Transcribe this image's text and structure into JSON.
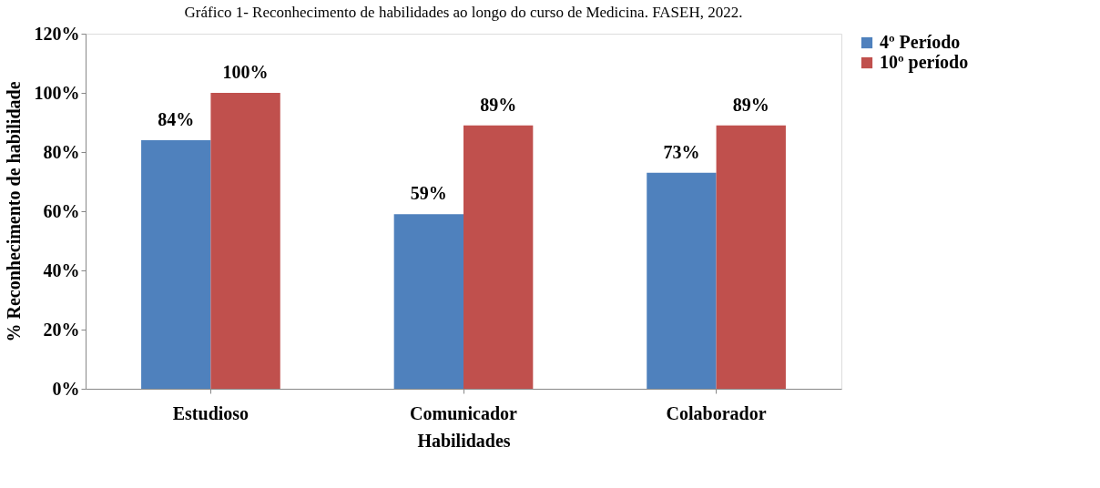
{
  "chart_data": {
    "type": "bar",
    "title": "Gráfico 1- Reconhecimento de habilidades ao longo do curso de Medicina. FASEH, 2022.",
    "xlabel": "Habilidades",
    "ylabel": "% Reconhecimento de habilidade",
    "categories": [
      "Estudioso",
      "Comunicador",
      "Colaborador"
    ],
    "series": [
      {
        "name": "4º Período",
        "color": "#4f81bd",
        "values": [
          84,
          59,
          73
        ],
        "value_labels": [
          "84%",
          "59%",
          "73%"
        ]
      },
      {
        "name": "10º período",
        "color": "#c0504d",
        "values": [
          100,
          89,
          89
        ],
        "value_labels": [
          "100%",
          "89%",
          "89%"
        ]
      }
    ],
    "ylim": [
      0,
      120
    ],
    "yticks": [
      {
        "value": 0,
        "label": "0%"
      },
      {
        "value": 20,
        "label": "20%"
      },
      {
        "value": 40,
        "label": "40%"
      },
      {
        "value": 60,
        "label": "60%"
      },
      {
        "value": 80,
        "label": "80%"
      },
      {
        "value": 100,
        "label": "100%"
      },
      {
        "value": 120,
        "label": "120%"
      }
    ],
    "grid": false,
    "legend": "right"
  }
}
